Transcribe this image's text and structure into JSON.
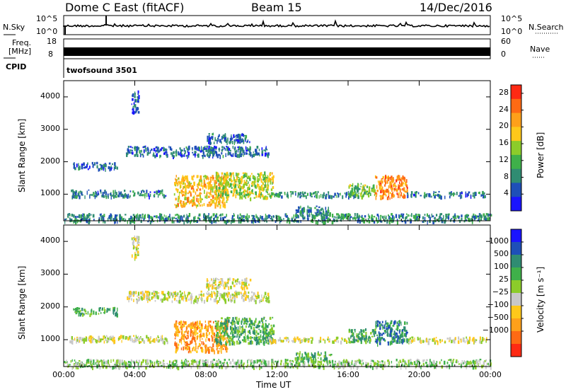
{
  "header": {
    "radar": "Dome C East (fitACF)",
    "beam": "Beam 15",
    "date": "14/Dec/2016"
  },
  "strips": {
    "nsky_label": "N.Sky",
    "nsearch_label": "N.Search",
    "nsky_ticks": [
      "10^5",
      "10^0"
    ],
    "nsearch_ticks": [
      "10^5",
      "10^0"
    ],
    "freq_label": "Freq.",
    "freq_unit": "[MHz]",
    "freq_ticks": [
      "18",
      "8"
    ],
    "nave_label": "Nave",
    "nave_ticks": [
      "60",
      "0"
    ],
    "cpid_label": "CPID",
    "cpid_value": "twofsound 3501"
  },
  "chart_data": [
    {
      "type": "heatmap",
      "name": "power",
      "xlabel": "Time UT",
      "ylabel": "Slant Range [km]",
      "x_ticks": [
        "00:00",
        "04:00",
        "08:00",
        "12:00",
        "16:00",
        "20:00",
        "00:00"
      ],
      "xlim_hours": [
        0,
        24
      ],
      "y_ticks": [
        1000,
        2000,
        3000,
        4000
      ],
      "ylim_km": [
        180,
        4500
      ],
      "colorbar": {
        "label": "Power [dB]",
        "ticks": [
          "4",
          "8",
          "12",
          "16",
          "20",
          "24",
          "28"
        ],
        "range": [
          0,
          30
        ],
        "colors": [
          "#1a14ff",
          "#1e4fb8",
          "#2f8c72",
          "#3fb04a",
          "#8ccc2a",
          "#ffc81a",
          "#ffa01a",
          "#ff6a14",
          "#ff2a14"
        ]
      },
      "echo_regions": [
        {
          "t_start": 0.0,
          "t_end": 24.0,
          "r_start": 180,
          "r_end": 420,
          "level": 8
        },
        {
          "t_start": 0.3,
          "t_end": 5.8,
          "r_start": 950,
          "r_end": 1150,
          "level": 6
        },
        {
          "t_start": 6.2,
          "t_end": 9.2,
          "r_start": 650,
          "r_end": 1600,
          "level": 20
        },
        {
          "t_start": 8.5,
          "t_end": 11.8,
          "r_start": 900,
          "r_end": 1700,
          "level": 16
        },
        {
          "t_start": 11.5,
          "t_end": 16.5,
          "r_start": 950,
          "r_end": 1100,
          "level": 8
        },
        {
          "t_start": 13.0,
          "t_end": 15.0,
          "r_start": 350,
          "r_end": 650,
          "level": 7
        },
        {
          "t_start": 16.0,
          "t_end": 17.5,
          "r_start": 950,
          "r_end": 1350,
          "level": 13
        },
        {
          "t_start": 17.5,
          "t_end": 19.3,
          "r_start": 900,
          "r_end": 1600,
          "level": 24
        },
        {
          "t_start": 19.3,
          "t_end": 23.8,
          "r_start": 950,
          "r_end": 1100,
          "level": 6
        },
        {
          "t_start": 8.0,
          "t_end": 10.5,
          "r_start": 2600,
          "r_end": 2900,
          "level": 5
        },
        {
          "t_start": 3.5,
          "t_end": 11.5,
          "r_start": 2200,
          "r_end": 2500,
          "level": 5
        },
        {
          "t_start": 3.8,
          "t_end": 4.2,
          "r_start": 3500,
          "r_end": 4200,
          "level": 4
        },
        {
          "t_start": 0.5,
          "t_end": 3.0,
          "r_start": 1800,
          "r_end": 2000,
          "level": 5
        }
      ]
    },
    {
      "type": "heatmap",
      "name": "velocity",
      "xlabel": "Time UT",
      "ylabel": "Slant Range [km]",
      "x_ticks": [
        "00:00",
        "04:00",
        "08:00",
        "12:00",
        "16:00",
        "20:00",
        "00:00"
      ],
      "xlim_hours": [
        0,
        24
      ],
      "y_ticks": [
        1000,
        2000,
        3000,
        4000
      ],
      "ylim_km": [
        180,
        4500
      ],
      "colorbar": {
        "label": "Velocity [m s⁻¹]",
        "ticks": [
          "1000",
          "500",
          "100",
          "25",
          "−25",
          "−100",
          "−500",
          "−1000"
        ],
        "colors": [
          "#1a14ff",
          "#1e4fb8",
          "#2f8c72",
          "#3fb04a",
          "#8ccc2a",
          "#c8c8c8",
          "#ffc81a",
          "#ffa01a",
          "#ff6a14",
          "#ff2a14"
        ]
      },
      "echo_regions": [
        {
          "t_start": 0.0,
          "t_end": 24.0,
          "r_start": 180,
          "r_end": 420,
          "level": 4
        },
        {
          "t_start": 0.3,
          "t_end": 5.8,
          "r_start": 950,
          "r_end": 1150,
          "level": 5
        },
        {
          "t_start": 6.2,
          "t_end": 9.2,
          "r_start": 650,
          "r_end": 1600,
          "level": 7
        },
        {
          "t_start": 8.5,
          "t_end": 11.8,
          "r_start": 900,
          "r_end": 1700,
          "level": 3
        },
        {
          "t_start": 11.5,
          "t_end": 16.5,
          "r_start": 950,
          "r_end": 1100,
          "level": 5
        },
        {
          "t_start": 13.0,
          "t_end": 15.0,
          "r_start": 350,
          "r_end": 650,
          "level": 3
        },
        {
          "t_start": 16.0,
          "t_end": 17.5,
          "r_start": 950,
          "r_end": 1350,
          "level": 3
        },
        {
          "t_start": 17.5,
          "t_end": 19.3,
          "r_start": 900,
          "r_end": 1600,
          "level": 2
        },
        {
          "t_start": 19.3,
          "t_end": 23.8,
          "r_start": 950,
          "r_end": 1100,
          "level": 5
        },
        {
          "t_start": 8.0,
          "t_end": 10.5,
          "r_start": 2600,
          "r_end": 2900,
          "level": 5
        },
        {
          "t_start": 3.5,
          "t_end": 11.5,
          "r_start": 2200,
          "r_end": 2500,
          "level": 5
        },
        {
          "t_start": 3.8,
          "t_end": 4.2,
          "r_start": 3500,
          "r_end": 4200,
          "level": 5
        },
        {
          "t_start": 0.5,
          "t_end": 3.0,
          "r_start": 1800,
          "r_end": 2000,
          "level": 3
        }
      ]
    }
  ]
}
